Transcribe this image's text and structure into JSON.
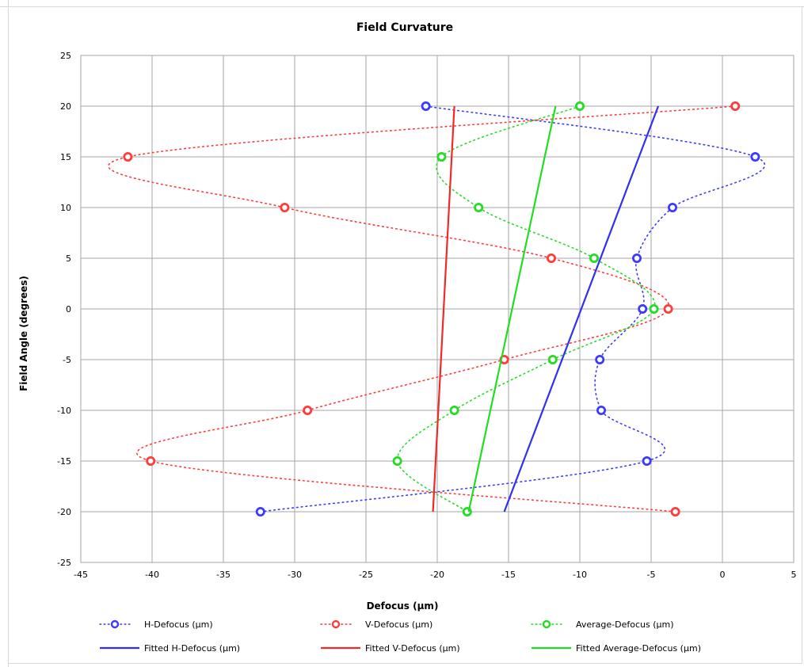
{
  "chart_data": {
    "type": "scatter",
    "title": "Field Curvature",
    "xlabel": "Defocus (µm)",
    "ylabel": "Field Angle (degrees)",
    "xlim": [
      -45,
      5
    ],
    "ylim": [
      -25,
      25
    ],
    "xticks": [
      "-45",
      "-40",
      "-35",
      "-30",
      "-25",
      "-20",
      "-15",
      "-10",
      "-5",
      "0",
      "5"
    ],
    "yticks": [
      "25",
      "20",
      "15",
      "10",
      "5",
      "0",
      "-5",
      "-10",
      "-15",
      "-20",
      "-25"
    ],
    "grid": true,
    "legend_position": "bottom",
    "series": [
      {
        "name": "H-Defocus (µm)",
        "color": "#3b3bff",
        "style": "dotted-markers",
        "points": [
          [
            -20.8,
            20
          ],
          [
            2.3,
            15
          ],
          [
            -3.5,
            10
          ],
          [
            -6,
            5
          ],
          [
            -5.6,
            0
          ],
          [
            -8.6,
            -5
          ],
          [
            -8.5,
            -10
          ],
          [
            -5.3,
            -15
          ],
          [
            -32.4,
            -20
          ]
        ]
      },
      {
        "name": "V-Defocus (µm)",
        "color": "#ff3b3b",
        "style": "dotted-markers",
        "points": [
          [
            0.9,
            20
          ],
          [
            -41.7,
            15
          ],
          [
            -30.7,
            10
          ],
          [
            -12,
            5
          ],
          [
            -3.8,
            0
          ],
          [
            -15.3,
            -5
          ],
          [
            -29.1,
            -10
          ],
          [
            -40.1,
            -15
          ],
          [
            -3.3,
            -20
          ]
        ]
      },
      {
        "name": "Average-Defocus (µm)",
        "color": "#22dd22",
        "style": "dotted-markers",
        "points": [
          [
            -10,
            20
          ],
          [
            -19.7,
            15
          ],
          [
            -17.1,
            10
          ],
          [
            -9,
            5
          ],
          [
            -4.8,
            0
          ],
          [
            -11.9,
            -5
          ],
          [
            -18.8,
            -10
          ],
          [
            -22.8,
            -15
          ],
          [
            -17.9,
            -20
          ]
        ]
      },
      {
        "name": "Fitted H-Defocus (µm)",
        "color": "#3030ee",
        "style": "line",
        "points": [
          [
            -15.3,
            -20
          ],
          [
            -4.5,
            20
          ]
        ]
      },
      {
        "name": "Fitted V-Defocus (µm)",
        "color": "#ee2a2a",
        "style": "line",
        "points": [
          [
            -20.3,
            -20
          ],
          [
            -18.8,
            20
          ]
        ]
      },
      {
        "name": "Fitted Average-Defocus (µm)",
        "color": "#22dd22",
        "style": "line",
        "points": [
          [
            -17.8,
            -20
          ],
          [
            -11.7,
            20
          ]
        ]
      }
    ]
  }
}
